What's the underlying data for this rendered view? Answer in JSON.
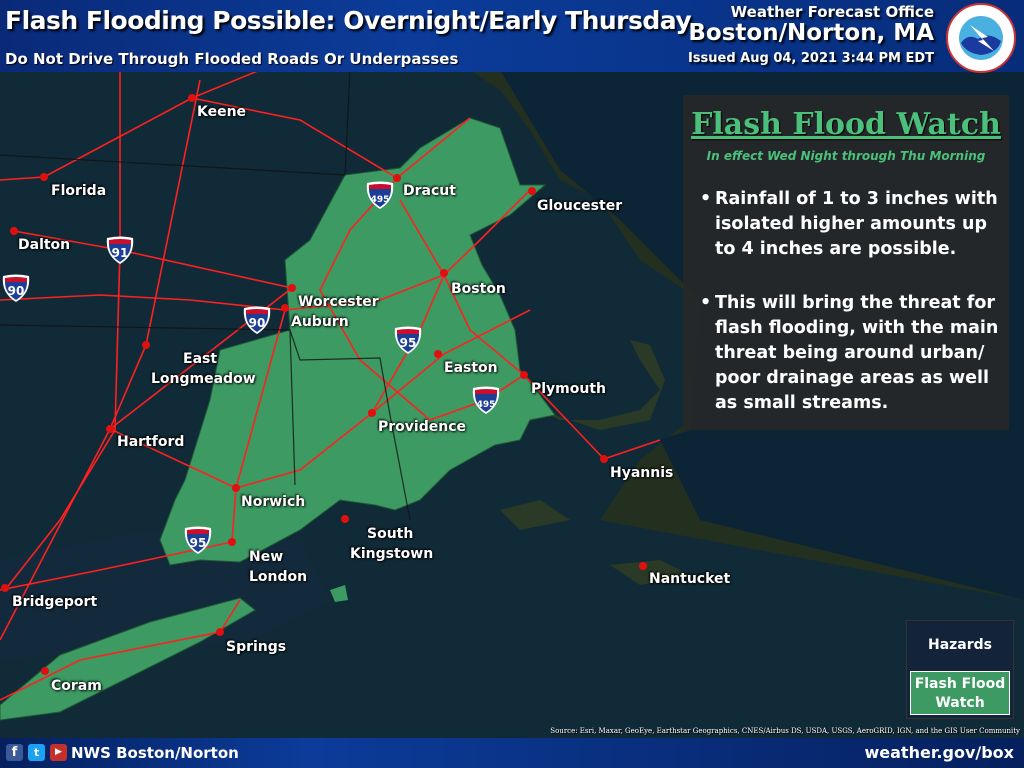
{
  "header": {
    "title": "Flash Flooding Possible: Overnight/Early Thursday",
    "subtitle": "Do Not Drive Through Flooded Roads Or Underpasses",
    "office_label": "Weather Forecast Office",
    "office": "Boston/Norton, MA",
    "issued": "Issued Aug 04, 2021 3:44 PM EDT",
    "logo_text": "NATIONAL WEATHER SERVICE"
  },
  "panel": {
    "title": "Flash Flood Watch",
    "subtitle": "In effect Wed Night through Thu Morning",
    "bullets": [
      "Rainfall of 1 to 3 inches with isolated higher amounts up to 4 inches are possible.",
      "This will bring the threat for flash flooding, with the main threat being around urban/ poor drainage areas as well as small streams."
    ]
  },
  "legend": {
    "title": "Hazards",
    "items": [
      {
        "label": "Flash Flood Watch",
        "color": "#3d9a63"
      }
    ]
  },
  "cities": [
    "Keene",
    "Florida",
    "Dalton",
    "Dracut",
    "Gloucester",
    "Worcester",
    "Auburn",
    "Boston",
    "East",
    "Longmeadow",
    "Easton",
    "Plymouth",
    "Hartford",
    "Providence",
    "Hyannis",
    "Norwich",
    "South",
    "Kingstown",
    "New",
    "London",
    "Nantucket",
    "Bridgeport",
    "Springs",
    "Coram"
  ],
  "shields": [
    "495",
    "91",
    "90",
    "90",
    "95",
    "495",
    "95"
  ],
  "source": "Source: Esri, Maxar, GeoEye, Earthstar Geographics, CNES/Airbus DS, USDA, USGS, AeroGRID, IGN, and the GIS User Community",
  "footer": {
    "social": "NWS Boston/Norton",
    "website": "weather.gov/box",
    "icons": [
      "facebook-icon",
      "twitter-icon",
      "youtube-icon"
    ]
  },
  "colors": {
    "watch": "#3d9a63",
    "roads": "#ff2020",
    "city": "#e01010"
  }
}
